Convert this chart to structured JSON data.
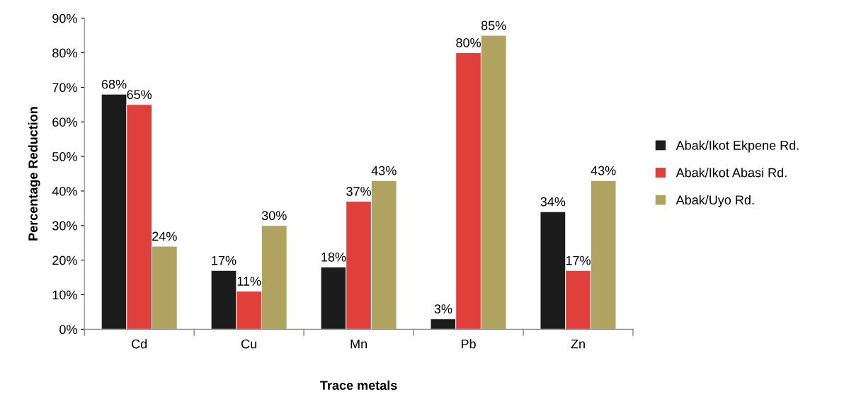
{
  "chart_data": {
    "type": "bar",
    "xlabel": "Trace metals",
    "ylabel": "Percentage Reduction",
    "categories": [
      "Cd",
      "Cu",
      "Mn",
      "Pb",
      "Zn"
    ],
    "series": [
      {
        "name": "Abak/Ikot Ekpene Rd.",
        "color": "#1c1c1c",
        "values": [
          68,
          17,
          18,
          3,
          34
        ],
        "value_labels": [
          "68%",
          "17%",
          "18%",
          "3%",
          "34%"
        ]
      },
      {
        "name": "Abak/Ikot Abasi Rd.",
        "color": "#e0403c",
        "values": [
          65,
          11,
          37,
          80,
          17
        ],
        "value_labels": [
          "65%",
          "11%",
          "37%",
          "80%",
          "17%"
        ]
      },
      {
        "name": "Abak/Uyo Rd.",
        "color": "#b0a362",
        "values": [
          24,
          30,
          43,
          85,
          43
        ],
        "value_labels": [
          "24%",
          "30%",
          "43%",
          "85%",
          "43%"
        ]
      }
    ],
    "ylim": [
      0,
      90
    ],
    "yticks": [
      {
        "value": 0,
        "label": "0%"
      },
      {
        "value": 10,
        "label": "10%"
      },
      {
        "value": 20,
        "label": "20%"
      },
      {
        "value": 30,
        "label": "30%"
      },
      {
        "value": 40,
        "label": "40%"
      },
      {
        "value": 50,
        "label": "50%"
      },
      {
        "value": 60,
        "label": "60%"
      },
      {
        "value": 70,
        "label": "70%"
      },
      {
        "value": 80,
        "label": "80%"
      },
      {
        "value": 90,
        "label": "90%"
      }
    ],
    "grid": false,
    "legend": "right"
  }
}
